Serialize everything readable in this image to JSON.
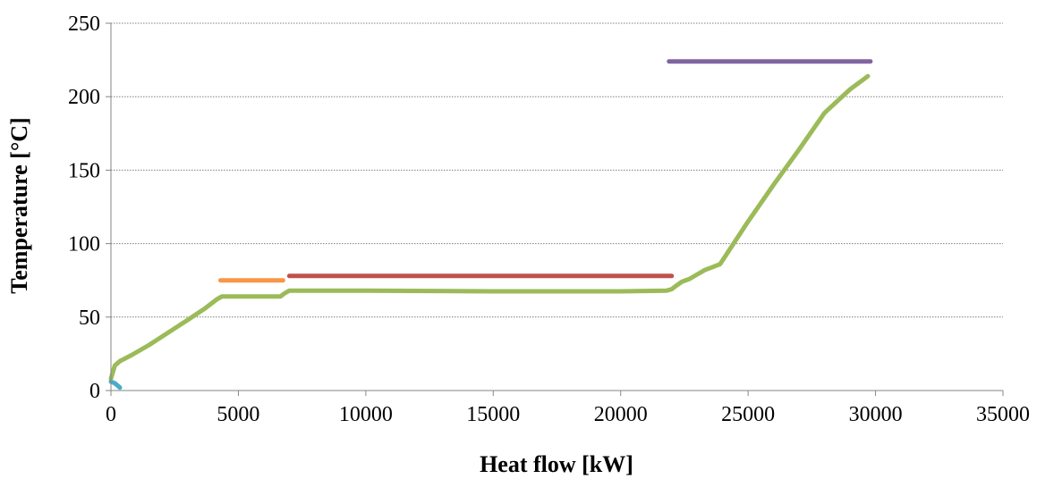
{
  "chart_data": {
    "type": "line",
    "xlabel": "Heat flow [kW]",
    "ylabel": "Temperature [°C]",
    "xlim": [
      0,
      35000
    ],
    "ylim": [
      0,
      250
    ],
    "xticks": [
      0,
      5000,
      10000,
      15000,
      20000,
      25000,
      30000,
      35000
    ],
    "yticks": [
      0,
      50,
      100,
      150,
      200,
      250
    ],
    "xtick_labels": [
      "0",
      "5000",
      "10000",
      "15000",
      "20000",
      "25000",
      "30000",
      "35000"
    ],
    "ytick_labels": [
      "0",
      "50",
      "100",
      "150",
      "200",
      "250"
    ],
    "grid": "horizontal dotted",
    "legend": "none",
    "series": [
      {
        "color": "#9bbb59",
        "x": [
          0,
          150,
          350,
          800,
          1500,
          2300,
          3100,
          3700,
          4150,
          4350,
          4600,
          5000,
          6000,
          6650,
          6800,
          7000,
          8000,
          10000,
          15000,
          20000,
          21800,
          22000,
          22150,
          22400,
          22700,
          23000,
          23300,
          23600,
          23900,
          24200,
          25000,
          26000,
          27000,
          28000,
          29000,
          29700
        ],
        "y": [
          8,
          17,
          20,
          24,
          31,
          40,
          49,
          56,
          62,
          64,
          64,
          64,
          64,
          64,
          66,
          68,
          68,
          68,
          67.5,
          67.5,
          68,
          69,
          71,
          74,
          76,
          79,
          82,
          84,
          86,
          94,
          115,
          140,
          164,
          189,
          205,
          214
        ]
      },
      {
        "color": "#4bacc6",
        "x": [
          0,
          150,
          350
        ],
        "y": [
          6,
          5,
          2
        ]
      },
      {
        "color": "#f79646",
        "x": [
          4300,
          6750
        ],
        "y": [
          75,
          75
        ]
      },
      {
        "color": "#c0504d",
        "x": [
          7000,
          22000
        ],
        "y": [
          78,
          78
        ]
      },
      {
        "color": "#8064a2",
        "x": [
          21900,
          29800
        ],
        "y": [
          224,
          224
        ]
      }
    ]
  }
}
